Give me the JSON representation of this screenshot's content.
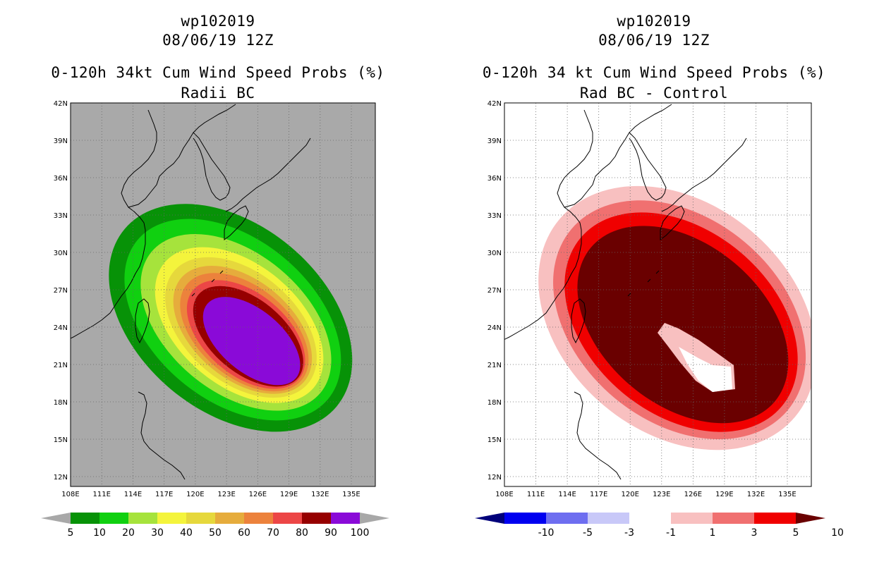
{
  "panels": [
    {
      "storm_id": "wp102019",
      "datetime": "08/06/19 12Z",
      "title_line1": "0-120h 34kt Cum Wind Speed Probs (%)",
      "title_line2": "Radii BC",
      "lat_labels": [
        "42N",
        "39N",
        "36N",
        "33N",
        "30N",
        "27N",
        "24N",
        "21N",
        "18N",
        "15N",
        "12N"
      ],
      "lon_labels": [
        "108E",
        "111E",
        "114E",
        "117E",
        "120E",
        "123E",
        "126E",
        "129E",
        "132E",
        "135E"
      ],
      "background": "#a9a9a9",
      "colorbar_labels": [
        "5",
        "10",
        "20",
        "30",
        "40",
        "50",
        "60",
        "70",
        "80",
        "90",
        "100"
      ],
      "colorbar_colors": [
        "#a8a8a8",
        "#079207",
        "#10d010",
        "#a6e33c",
        "#f4f43c",
        "#e6d83c",
        "#e6ac3c",
        "#ec823c",
        "#ec4646",
        "#960000",
        "#8a0ad8",
        "#a8a8a8"
      ],
      "contour_colors": [
        "#079207",
        "#10d010",
        "#a6e33c",
        "#f4f43c",
        "#e6d83c",
        "#e6ac3c",
        "#ec823c",
        "#ec4646",
        "#960000",
        "#8a0ad8"
      ]
    },
    {
      "storm_id": "wp102019",
      "datetime": "08/06/19 12Z",
      "title_line1": "0-120h 34 kt Cum Wind Speed Probs (%)",
      "title_line2": "Rad BC - Control",
      "lat_labels": [
        "42N",
        "39N",
        "36N",
        "33N",
        "30N",
        "27N",
        "24N",
        "21N",
        "18N",
        "15N",
        "12N"
      ],
      "lon_labels": [
        "108E",
        "111E",
        "114E",
        "117E",
        "120E",
        "123E",
        "126E",
        "129E",
        "132E",
        "135E"
      ],
      "background": "#ffffff",
      "colorbar_labels": [
        "-10",
        "-5",
        "-3",
        "-1",
        "1",
        "3",
        "5",
        "10"
      ],
      "colorbar_colors": [
        "#00007a",
        "#0000f0",
        "#6e6ef0",
        "#c8c8f8",
        "#ffffff",
        "#f8c0c0",
        "#f07070",
        "#f00000",
        "#6a0000"
      ],
      "contour_colors": [
        "#f8c0c0",
        "#f07070",
        "#f00000",
        "#6a0000"
      ]
    }
  ]
}
